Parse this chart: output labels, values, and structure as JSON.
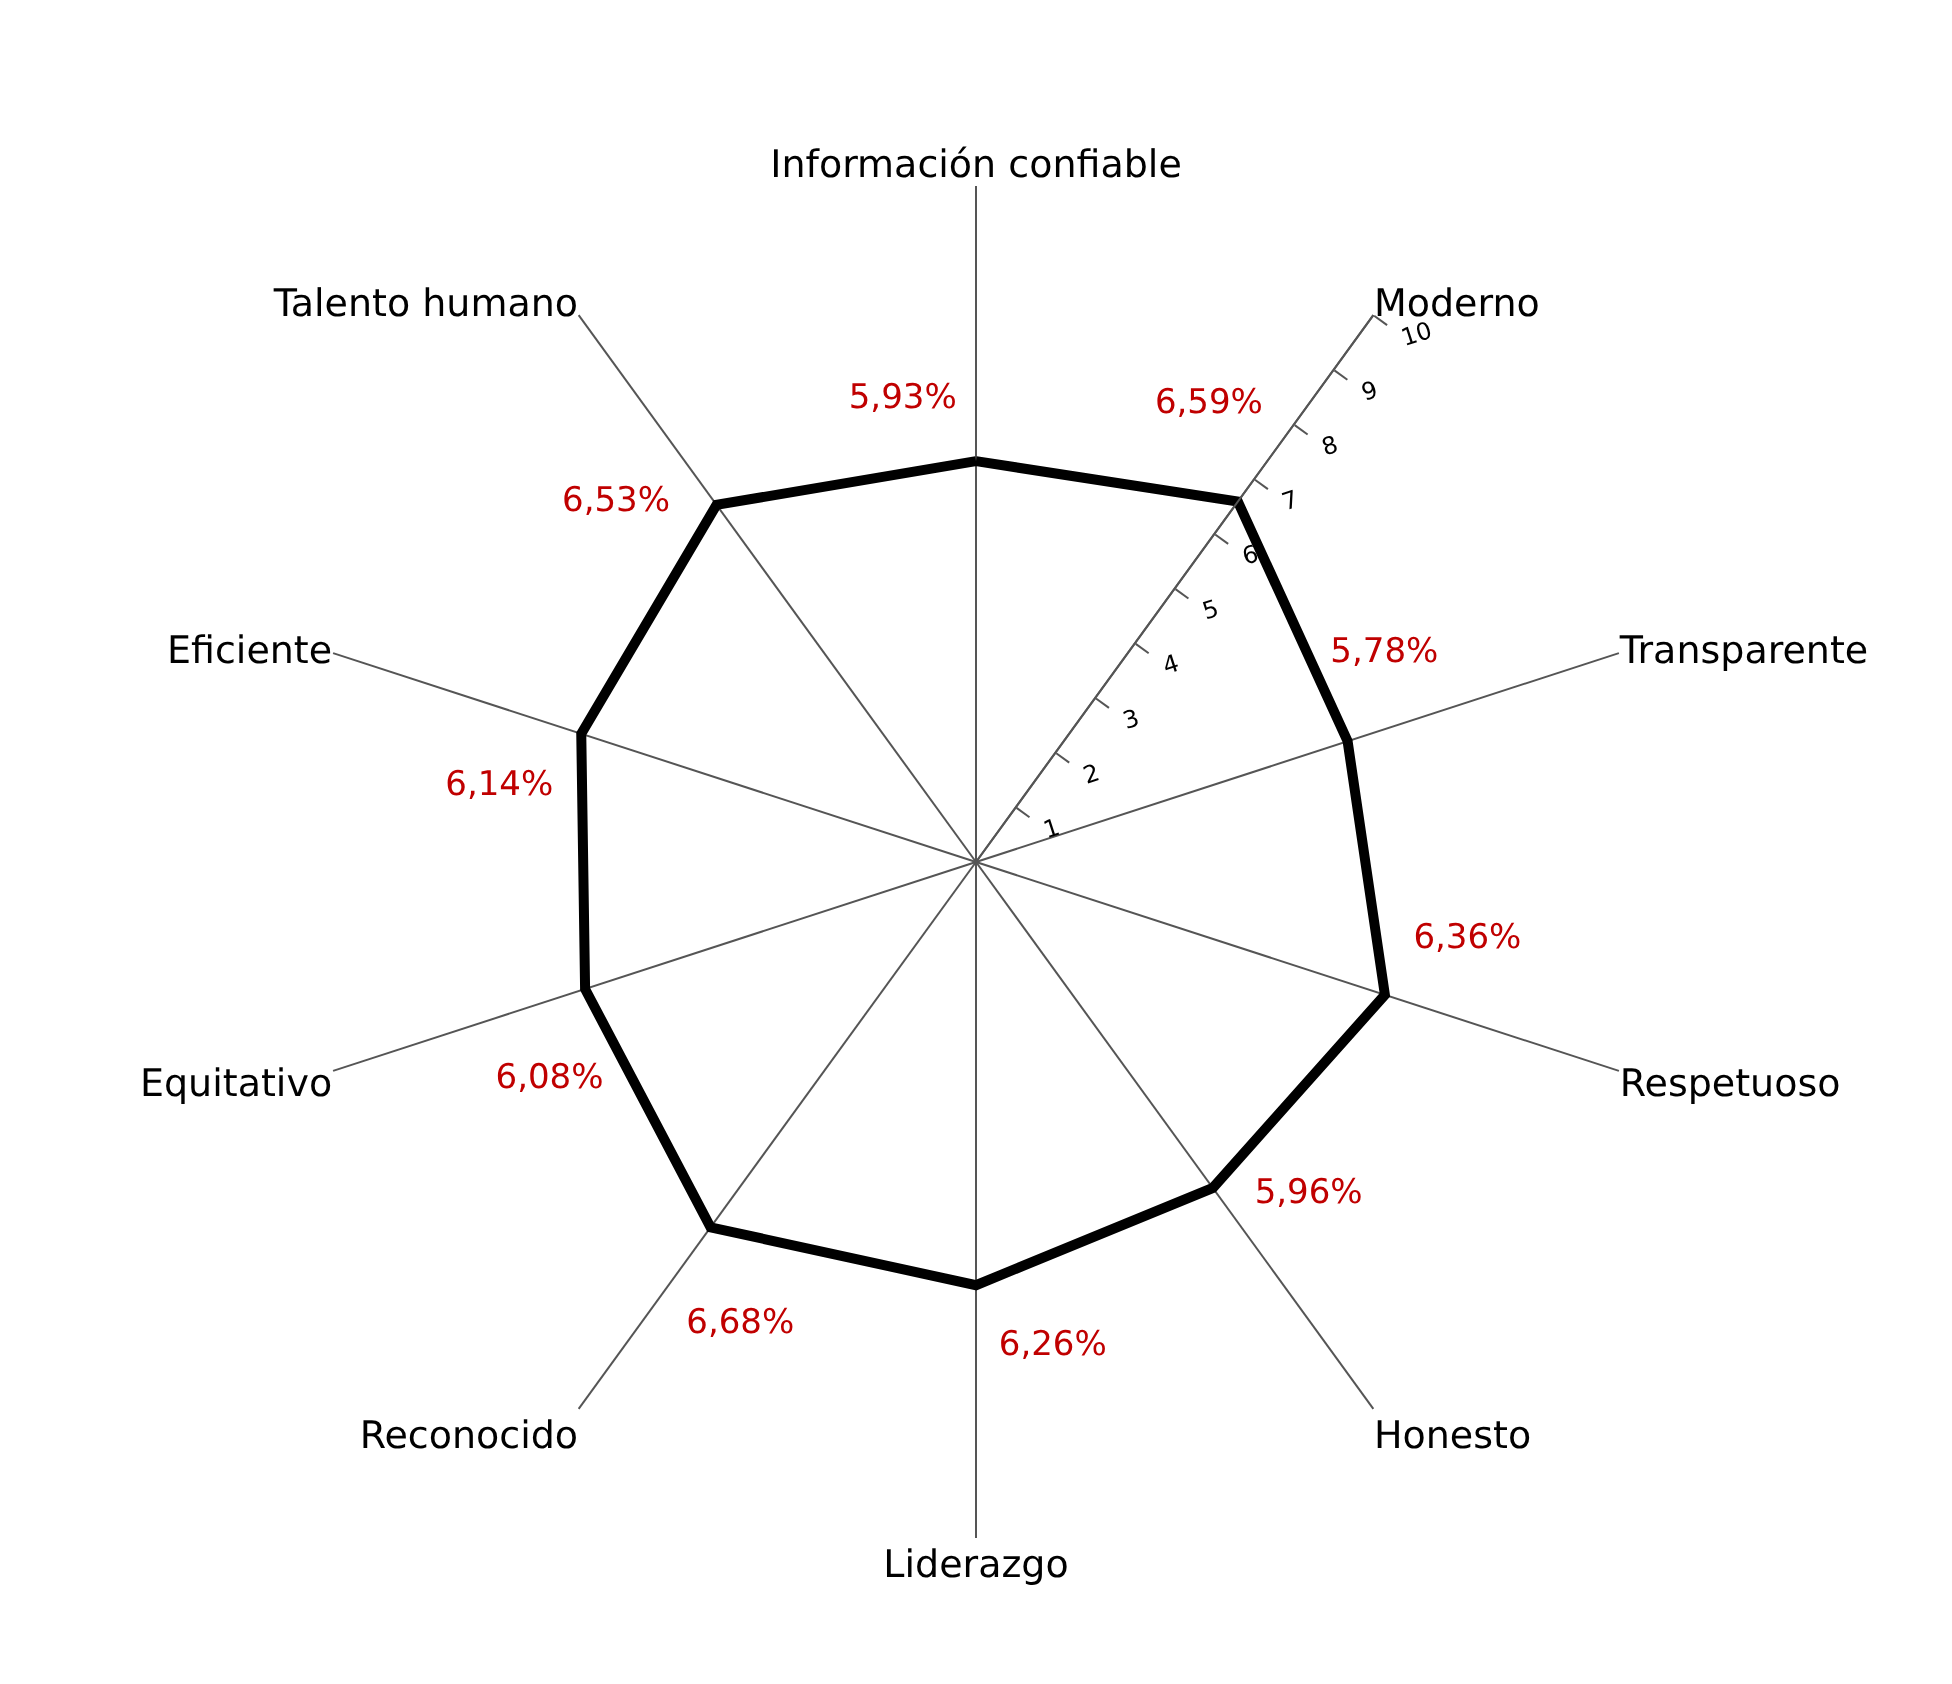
{
  "chart_data": {
    "type": "radar",
    "categories": [
      "Información confiable",
      "Moderno",
      "Transparente",
      "Respetuoso",
      "Honesto",
      "Liderazgo",
      "Reconocido",
      "Equitativo",
      "Eficiente",
      "Talento humano"
    ],
    "series": [
      {
        "color": "#000000",
        "values": [
          5.93,
          6.59,
          5.78,
          6.36,
          5.96,
          6.26,
          6.68,
          6.08,
          6.14,
          6.53
        ],
        "value_labels": [
          "5,93%",
          "6,59%",
          "5,78%",
          "6,36%",
          "5,96%",
          "6,26%",
          "6,68%",
          "6,08%",
          "6,14%",
          "6,53%"
        ]
      }
    ],
    "ylim": [
      0,
      10
    ],
    "yticks": [
      1,
      2,
      3,
      4,
      5,
      6,
      7,
      8,
      9,
      10
    ],
    "grid": false,
    "marker": "none",
    "line_style": "solid"
  }
}
